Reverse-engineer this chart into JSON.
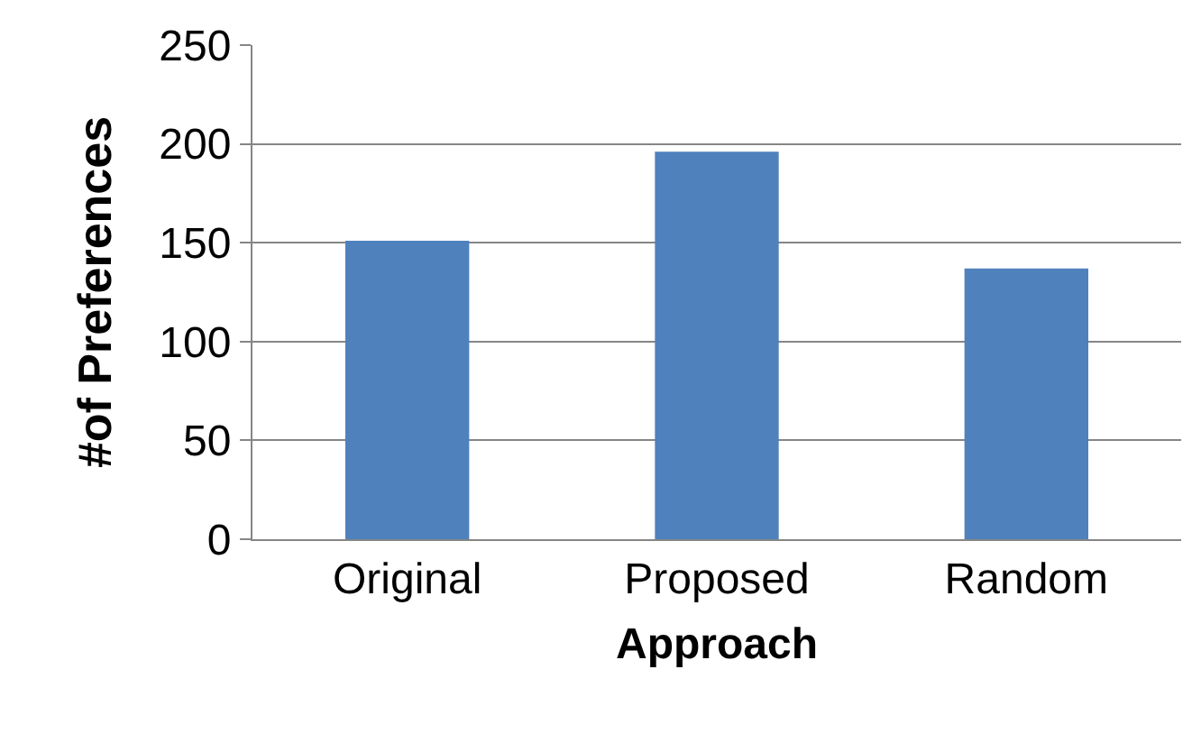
{
  "chart_data": {
    "type": "bar",
    "xlabel": "Approach",
    "ylabel": "#of Preferences",
    "categories": [
      "Original",
      "Proposed",
      "Random"
    ],
    "values": [
      151,
      196,
      137
    ],
    "color": "#4f81bd",
    "ylim": [
      0,
      250
    ],
    "yticks": [
      0,
      50,
      100,
      150,
      200,
      250
    ],
    "grid": "y",
    "legend": false
  }
}
